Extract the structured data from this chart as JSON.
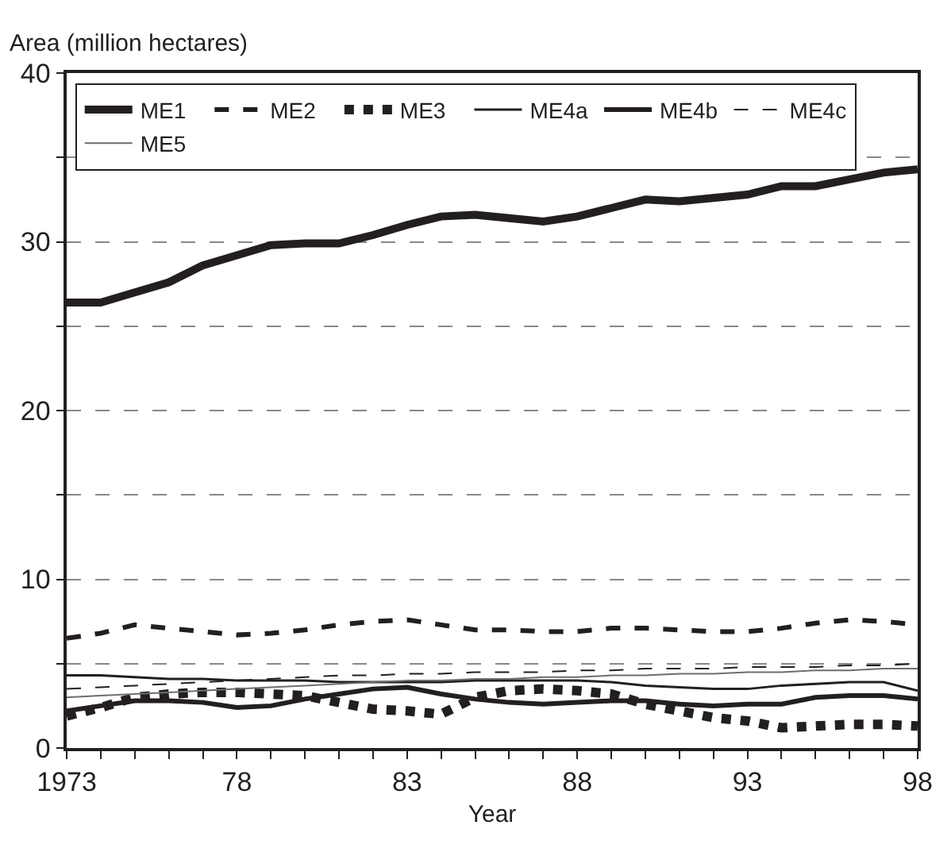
{
  "chart_data": {
    "type": "line",
    "xlabel": "Year",
    "ylabel": "Area (million hectares)",
    "x": [
      1973,
      1974,
      1975,
      1976,
      1977,
      1978,
      1979,
      1980,
      1981,
      1982,
      1983,
      1984,
      1985,
      1986,
      1987,
      1988,
      1989,
      1990,
      1991,
      1992,
      1993,
      1994,
      1995,
      1996,
      1997,
      1998
    ],
    "series": [
      {
        "name": "ME1",
        "color": "#231f20",
        "line_style": "solid",
        "values": [
          26.4,
          26.4,
          27.0,
          27.6,
          28.6,
          29.2,
          29.8,
          29.9,
          29.9,
          30.4,
          31.0,
          31.5,
          31.6,
          31.4,
          31.2,
          31.5,
          32.0,
          32.5,
          32.4,
          32.6,
          32.8,
          33.3,
          33.3,
          33.7,
          34.1,
          34.3
        ]
      },
      {
        "name": "ME2",
        "color": "#231f20",
        "line_style": "dashed",
        "values": [
          6.5,
          6.8,
          7.3,
          7.1,
          6.9,
          6.7,
          6.8,
          7.0,
          7.3,
          7.5,
          7.6,
          7.3,
          7.0,
          7.0,
          6.9,
          6.9,
          7.1,
          7.1,
          7.0,
          6.9,
          6.9,
          7.1,
          7.4,
          7.6,
          7.5,
          7.3
        ]
      },
      {
        "name": "ME3",
        "color": "#231f20",
        "line_style": "dotted",
        "values": [
          1.9,
          2.4,
          3.0,
          3.2,
          3.3,
          3.3,
          3.2,
          3.1,
          2.7,
          2.3,
          2.2,
          2.0,
          3.0,
          3.4,
          3.5,
          3.4,
          3.2,
          2.6,
          2.2,
          1.8,
          1.6,
          1.2,
          1.3,
          1.4,
          1.4,
          1.3
        ]
      },
      {
        "name": "ME4a",
        "color": "#231f20",
        "line_style": "solid",
        "values": [
          4.3,
          4.3,
          4.2,
          4.1,
          4.1,
          4.0,
          4.0,
          4.0,
          3.9,
          3.9,
          3.9,
          3.9,
          4.0,
          4.0,
          4.0,
          4.0,
          3.9,
          3.7,
          3.6,
          3.5,
          3.5,
          3.7,
          3.8,
          3.9,
          3.9,
          3.4
        ]
      },
      {
        "name": "ME4b",
        "color": "#231f20",
        "line_style": "solid",
        "values": [
          2.2,
          2.5,
          2.8,
          2.8,
          2.7,
          2.4,
          2.5,
          2.9,
          3.2,
          3.5,
          3.6,
          3.2,
          2.9,
          2.7,
          2.6,
          2.7,
          2.8,
          2.8,
          2.6,
          2.5,
          2.6,
          2.6,
          3.0,
          3.1,
          3.1,
          2.9
        ]
      },
      {
        "name": "ME4c",
        "color": "#231f20",
        "line_style": "dashed",
        "values": [
          3.5,
          3.6,
          3.7,
          3.8,
          3.9,
          4.0,
          4.1,
          4.2,
          4.3,
          4.3,
          4.4,
          4.4,
          4.5,
          4.5,
          4.5,
          4.6,
          4.6,
          4.7,
          4.7,
          4.7,
          4.8,
          4.8,
          4.8,
          4.9,
          4.9,
          5.0
        ]
      },
      {
        "name": "ME5",
        "color": "#6d6e71",
        "line_style": "solid",
        "values": [
          3.0,
          3.1,
          3.2,
          3.3,
          3.4,
          3.5,
          3.6,
          3.7,
          3.8,
          3.9,
          4.0,
          4.0,
          4.1,
          4.1,
          4.2,
          4.2,
          4.3,
          4.3,
          4.4,
          4.4,
          4.5,
          4.5,
          4.6,
          4.6,
          4.7,
          4.7
        ]
      }
    ],
    "xlim": [
      1973,
      1998
    ],
    "xticks": [
      1973,
      {
        "value": 1974,
        "label": null
      },
      {
        "value": 1975,
        "label": null
      },
      {
        "value": 1976,
        "label": null
      },
      {
        "value": 1977,
        "label": null
      },
      {
        "value": 1978,
        "label": "78"
      },
      {
        "value": 1979,
        "label": null
      },
      {
        "value": 1980,
        "label": null
      },
      {
        "value": 1981,
        "label": null
      },
      {
        "value": 1982,
        "label": null
      },
      {
        "value": 1983,
        "label": "83"
      },
      {
        "value": 1984,
        "label": null
      },
      {
        "value": 1985,
        "label": null
      },
      {
        "value": 1986,
        "label": null
      },
      {
        "value": 1987,
        "label": null
      },
      {
        "value": 1988,
        "label": "88"
      },
      {
        "value": 1989,
        "label": null
      },
      {
        "value": 1990,
        "label": null
      },
      {
        "value": 1991,
        "label": null
      },
      {
        "value": 1992,
        "label": null
      },
      {
        "value": 1993,
        "label": "93"
      },
      {
        "value": 1994,
        "label": null
      },
      {
        "value": 1995,
        "label": null
      },
      {
        "value": 1996,
        "label": null
      },
      {
        "value": 1997,
        "label": null
      },
      {
        "value": 1998,
        "label": "98"
      }
    ],
    "ylim": [
      0,
      40
    ],
    "yticks": [
      0,
      {
        "value": 5,
        "label": null
      },
      10,
      {
        "value": 15,
        "label": null
      },
      20,
      {
        "value": 25,
        "label": null
      },
      30,
      {
        "value": 35,
        "label": null
      },
      40
    ],
    "grid": "y",
    "legend": "top",
    "marker": "none"
  }
}
